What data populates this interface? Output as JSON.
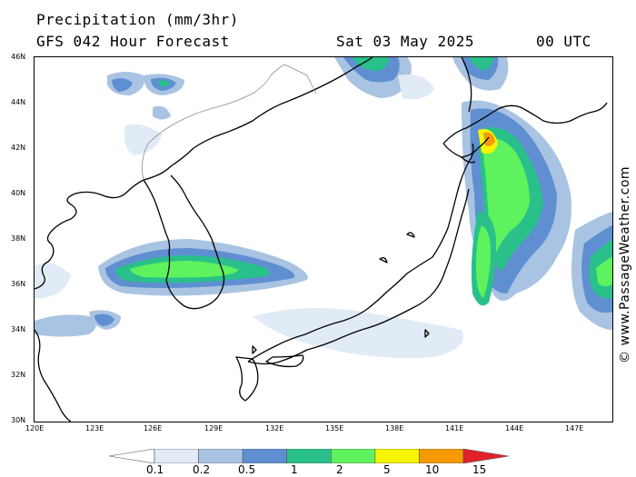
{
  "header": {
    "title": "Precipitation (mm/3hr)",
    "forecast": "GFS 042 Hour Forecast",
    "date": "Sat 03 May 2025",
    "time": "00 UTC"
  },
  "credit": "© www.PassageWeather.com",
  "axes": {
    "lat_labels": [
      "46N",
      "44N",
      "42N",
      "40N",
      "38N",
      "36N",
      "34N",
      "32N",
      "30N"
    ],
    "lon_labels": [
      "120E",
      "123E",
      "126E",
      "129E",
      "132E",
      "135E",
      "138E",
      "141E",
      "144E",
      "147E"
    ]
  },
  "legend": {
    "levels": [
      "0.1",
      "0.2",
      "0.5",
      "1",
      "2",
      "5",
      "10",
      "15"
    ],
    "colors": [
      "#ffffff",
      "#e1ebf5",
      "#a9c3e2",
      "#5f8fd1",
      "#29c08a",
      "#5ef25e",
      "#f5f500",
      "#f59a00",
      "#e2212b"
    ]
  },
  "colors": {
    "land_outline": "#000000",
    "border_line": "#8c8c8c"
  }
}
